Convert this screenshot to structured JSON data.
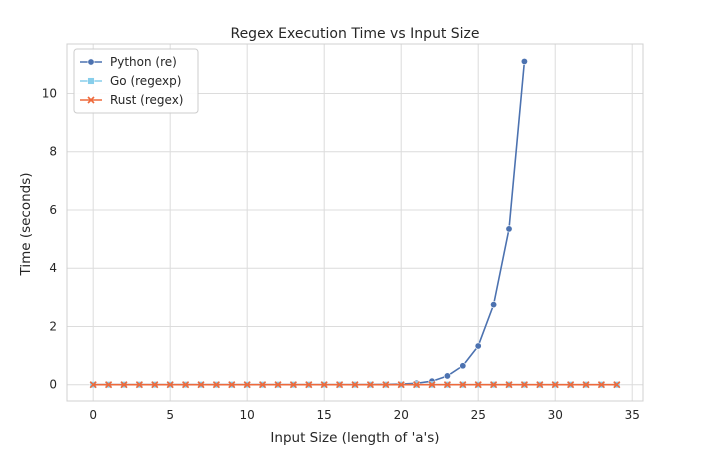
{
  "chart_data": {
    "type": "line",
    "title": "Regex Execution Time vs Input Size",
    "xlabel": "Input Size (length of 'a's)",
    "ylabel": "Time (seconds)",
    "xlim": [
      -1.7,
      35.7
    ],
    "ylim": [
      -0.56,
      11.7
    ],
    "x_ticks": [
      0,
      5,
      10,
      15,
      20,
      25,
      30,
      35
    ],
    "y_ticks": [
      0,
      2,
      4,
      6,
      8,
      10
    ],
    "grid": true,
    "legend_position": "top-left",
    "series": [
      {
        "name": "Python (re)",
        "color": "#4c72b0",
        "marker": "circle",
        "x": [
          0,
          1,
          2,
          3,
          4,
          5,
          6,
          7,
          8,
          9,
          10,
          11,
          12,
          13,
          14,
          15,
          16,
          17,
          18,
          19,
          20,
          21,
          22,
          23,
          24,
          25,
          26,
          27,
          28
        ],
        "values": [
          0,
          0,
          0,
          0,
          0,
          0,
          0,
          0,
          0,
          0,
          0,
          0,
          0,
          0,
          0,
          0,
          0,
          0,
          0.005,
          0.01,
          0.02,
          0.05,
          0.12,
          0.3,
          0.65,
          1.33,
          2.75,
          5.35,
          11.1
        ]
      },
      {
        "name": "Go (regexp)",
        "color": "#87ceeb",
        "marker": "square",
        "x": [
          0,
          1,
          2,
          3,
          4,
          5,
          6,
          7,
          8,
          9,
          10,
          11,
          12,
          13,
          14,
          15,
          16,
          17,
          18,
          19,
          20,
          21,
          22,
          23,
          24,
          25,
          26,
          27,
          28,
          29,
          30,
          31,
          32,
          33,
          34
        ],
        "values": [
          0,
          0,
          0,
          0,
          0,
          0,
          0,
          0,
          0,
          0,
          0,
          0,
          0,
          0,
          0,
          0,
          0,
          0,
          0,
          0,
          0,
          0,
          0,
          0,
          0,
          0,
          0,
          0,
          0,
          0,
          0,
          0,
          0,
          0,
          0
        ]
      },
      {
        "name": "Rust (regex)",
        "color": "#ee6a3c",
        "marker": "x",
        "x": [
          0,
          1,
          2,
          3,
          4,
          5,
          6,
          7,
          8,
          9,
          10,
          11,
          12,
          13,
          14,
          15,
          16,
          17,
          18,
          19,
          20,
          21,
          22,
          23,
          24,
          25,
          26,
          27,
          28,
          29,
          30,
          31,
          32,
          33,
          34
        ],
        "values": [
          0,
          0,
          0,
          0,
          0,
          0,
          0,
          0,
          0,
          0,
          0,
          0,
          0,
          0,
          0,
          0,
          0,
          0,
          0,
          0,
          0,
          0,
          0,
          0,
          0,
          0,
          0,
          0,
          0,
          0,
          0,
          0,
          0,
          0,
          0
        ]
      }
    ]
  }
}
